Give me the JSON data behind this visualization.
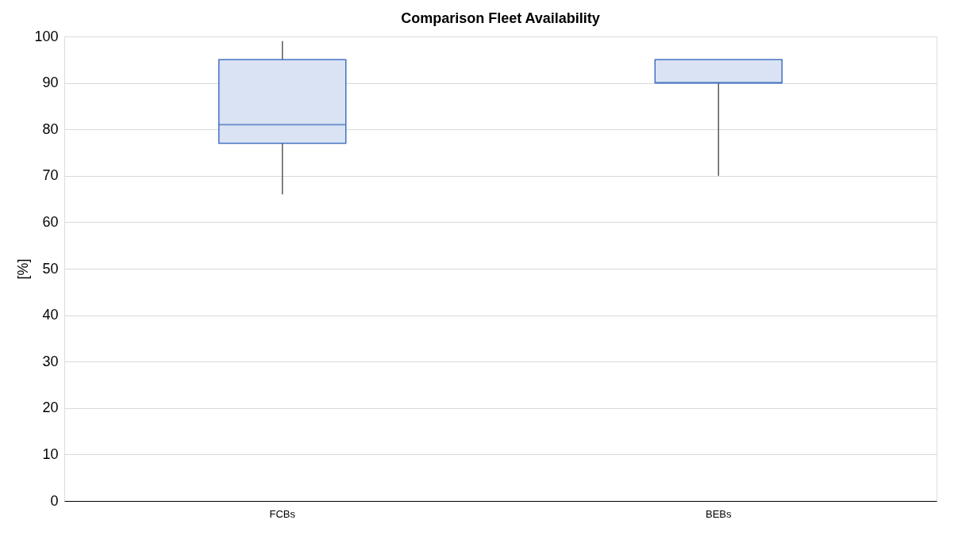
{
  "chart_data": {
    "type": "box",
    "title": "Comparison Fleet Availability",
    "ylabel": "[%]",
    "categories": [
      "FCBs",
      "BEBs"
    ],
    "boxes": [
      {
        "low": 66,
        "q1": 77,
        "median": 81,
        "q3": 95,
        "high": 99
      },
      {
        "low": 70,
        "q1": 90,
        "median": 90,
        "q3": 95,
        "high": 95
      }
    ],
    "color": "#dae3f3",
    "ylim": [
      0,
      100
    ],
    "yticks": [
      0,
      10,
      20,
      30,
      40,
      50,
      60,
      70,
      80,
      90,
      100
    ],
    "grid": "y"
  }
}
